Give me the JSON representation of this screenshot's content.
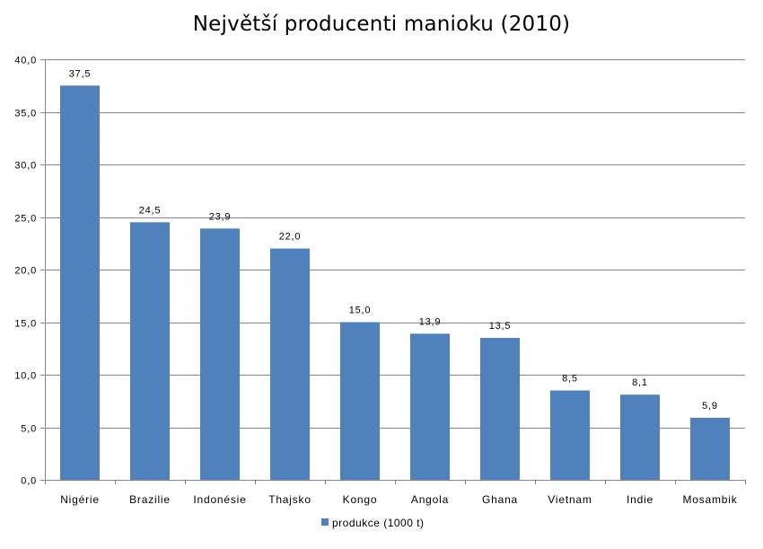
{
  "chart_data": {
    "type": "bar",
    "title": "Největší producenti manioku (2010)",
    "categories": [
      "Nigérie",
      "Brazilie",
      "Indonésie",
      "Thajsko",
      "Kongo",
      "Angola",
      "Ghana",
      "Vietnam",
      "Indie",
      "Mosambik"
    ],
    "series": [
      {
        "name": "produkce (1000 t)",
        "values": [
          37.5,
          24.5,
          23.9,
          22.0,
          15.0,
          13.9,
          13.5,
          8.5,
          8.1,
          5.9
        ],
        "data_labels": [
          "37,5",
          "24,5",
          "23,9",
          "22,0",
          "15,0",
          "13,9",
          "13,5",
          "8,5",
          "8,1",
          "5,9"
        ]
      }
    ],
    "ylim": [
      0,
      40
    ],
    "yticks": [
      0,
      5,
      10,
      15,
      20,
      25,
      30,
      35,
      40
    ],
    "ytick_labels": [
      "0,0",
      "5,0",
      "10,0",
      "15,0",
      "20,0",
      "25,0",
      "30,0",
      "35,0",
      "40,0"
    ],
    "grid": true,
    "legend": "bottom",
    "colors": {
      "bar": "#4F81BD",
      "grid": "#868686",
      "axis": "#868686"
    }
  }
}
